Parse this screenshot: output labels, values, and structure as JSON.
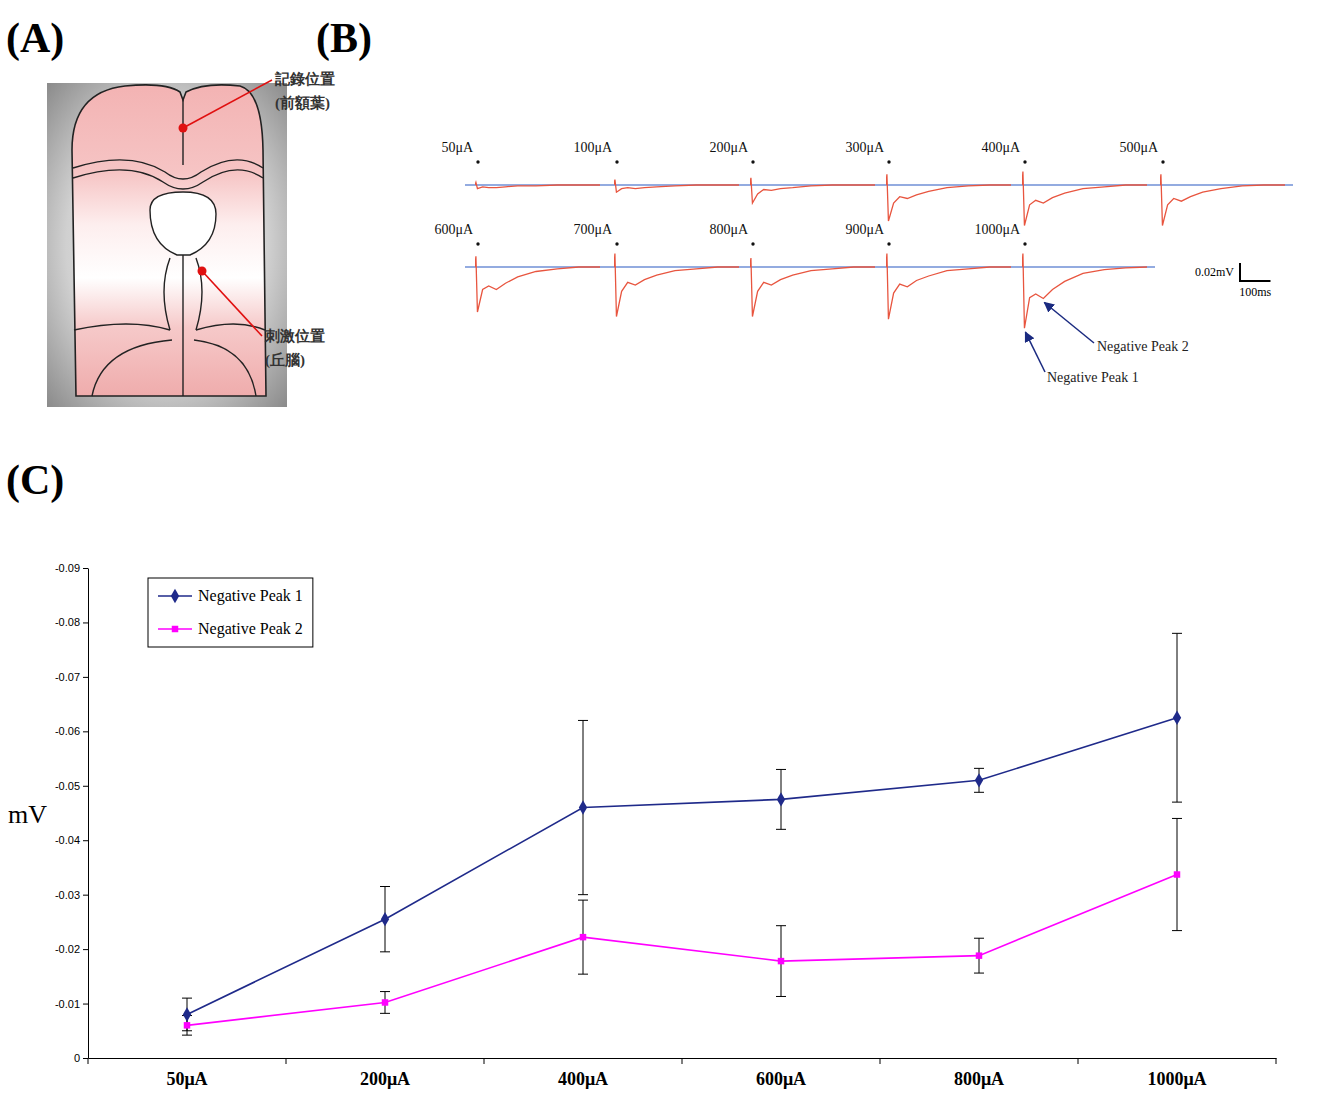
{
  "panel_labels": [
    "(A)",
    "(B)",
    "(C)"
  ],
  "diagram": {
    "labels": [
      {
        "lines": [
          "記錄位置",
          "(前額葉)"
        ]
      },
      {
        "lines": [
          "刺激位置",
          "(丘腦)"
        ]
      }
    ]
  },
  "chart_data": [
    {
      "type": "line",
      "tick_labels": false,
      "color": "#e8553f",
      "x": [
        0,
        3,
        8,
        25,
        45,
        70,
        100,
        140,
        200,
        270,
        340,
        410
      ],
      "xlim": [
        0,
        410
      ],
      "ylim": [
        -0.075,
        0.025
      ],
      "series": [
        {
          "name": "50μA",
          "values": [
            0,
            0.003,
            -0.004,
            -0.002,
            -0.003,
            -0.003,
            -0.002,
            -0.001,
            -0.001,
            0,
            0,
            0
          ]
        },
        {
          "name": "100μA",
          "values": [
            0,
            0.006,
            -0.008,
            -0.004,
            -0.003,
            -0.004,
            -0.003,
            -0.002,
            -0.001,
            0,
            0,
            0
          ]
        },
        {
          "name": "200μA",
          "values": [
            0,
            0.008,
            -0.02,
            -0.01,
            -0.005,
            -0.006,
            -0.004,
            -0.003,
            -0.001,
            0,
            0,
            0
          ]
        },
        {
          "name": "300μA",
          "values": [
            0,
            0.012,
            -0.04,
            -0.02,
            -0.013,
            -0.015,
            -0.011,
            -0.007,
            -0.003,
            -0.001,
            0,
            0
          ]
        },
        {
          "name": "400μA",
          "values": [
            0,
            0.015,
            -0.045,
            -0.022,
            -0.017,
            -0.02,
            -0.014,
            -0.009,
            -0.004,
            -0.002,
            0,
            0
          ]
        },
        {
          "name": "500μA",
          "values": [
            0,
            0.012,
            -0.045,
            -0.022,
            -0.015,
            -0.018,
            -0.013,
            -0.008,
            -0.004,
            -0.001,
            0,
            0
          ]
        },
        {
          "name": "600μA",
          "values": [
            0,
            0.012,
            -0.05,
            -0.025,
            -0.021,
            -0.025,
            -0.018,
            -0.011,
            -0.005,
            -0.002,
            0,
            0
          ]
        },
        {
          "name": "700μA",
          "values": [
            0,
            0.015,
            -0.055,
            -0.027,
            -0.017,
            -0.02,
            -0.014,
            -0.009,
            -0.004,
            -0.002,
            0,
            0
          ]
        },
        {
          "name": "800μA",
          "values": [
            0,
            0.01,
            -0.055,
            -0.027,
            -0.017,
            -0.02,
            -0.014,
            -0.009,
            -0.004,
            -0.002,
            0,
            0
          ]
        },
        {
          "name": "900μA",
          "values": [
            0,
            0.015,
            -0.058,
            -0.029,
            -0.019,
            -0.022,
            -0.015,
            -0.01,
            -0.004,
            -0.002,
            0,
            0
          ]
        },
        {
          "name": "1000μA",
          "values": [
            0,
            0.015,
            -0.068,
            -0.034,
            -0.03,
            -0.035,
            -0.025,
            -0.016,
            -0.007,
            -0.003,
            -0.001,
            0
          ]
        }
      ],
      "scale_bar": {
        "x": 100,
        "x_label": "100ms",
        "y": 0.02,
        "y_label": "0.02mV"
      },
      "annotations": [
        "Negative Peak 1",
        "Negative Peak 2"
      ]
    },
    {
      "type": "line",
      "categories": [
        "50μA",
        "200μA",
        "400μA",
        "600μA",
        "800μA",
        "1000μA"
      ],
      "ylabel": "mV",
      "ylim": [
        0,
        -0.09
      ],
      "yticks": [
        0,
        -0.01,
        -0.02,
        -0.03,
        -0.04,
        -0.05,
        -0.06,
        -0.07,
        -0.08,
        -0.09
      ],
      "grid": false,
      "legend": "upper left",
      "series": [
        {
          "name": "Negative Peak 1",
          "color": "#1f2a8a",
          "marker": "diamond",
          "values": [
            -0.008,
            -0.0255,
            -0.046,
            -0.0475,
            -0.051,
            -0.0625
          ],
          "errors": [
            0.003,
            0.006,
            0.016,
            0.0055,
            0.0022,
            0.0155
          ]
        },
        {
          "name": "Negative Peak 2",
          "color": "#ff00ff",
          "marker": "square",
          "values": [
            -0.006,
            -0.0102,
            -0.0222,
            -0.0178,
            -0.0188,
            -0.0337
          ],
          "errors": [
            0.0018,
            0.002,
            0.0068,
            0.0065,
            0.0032,
            0.0103
          ]
        }
      ]
    }
  ]
}
